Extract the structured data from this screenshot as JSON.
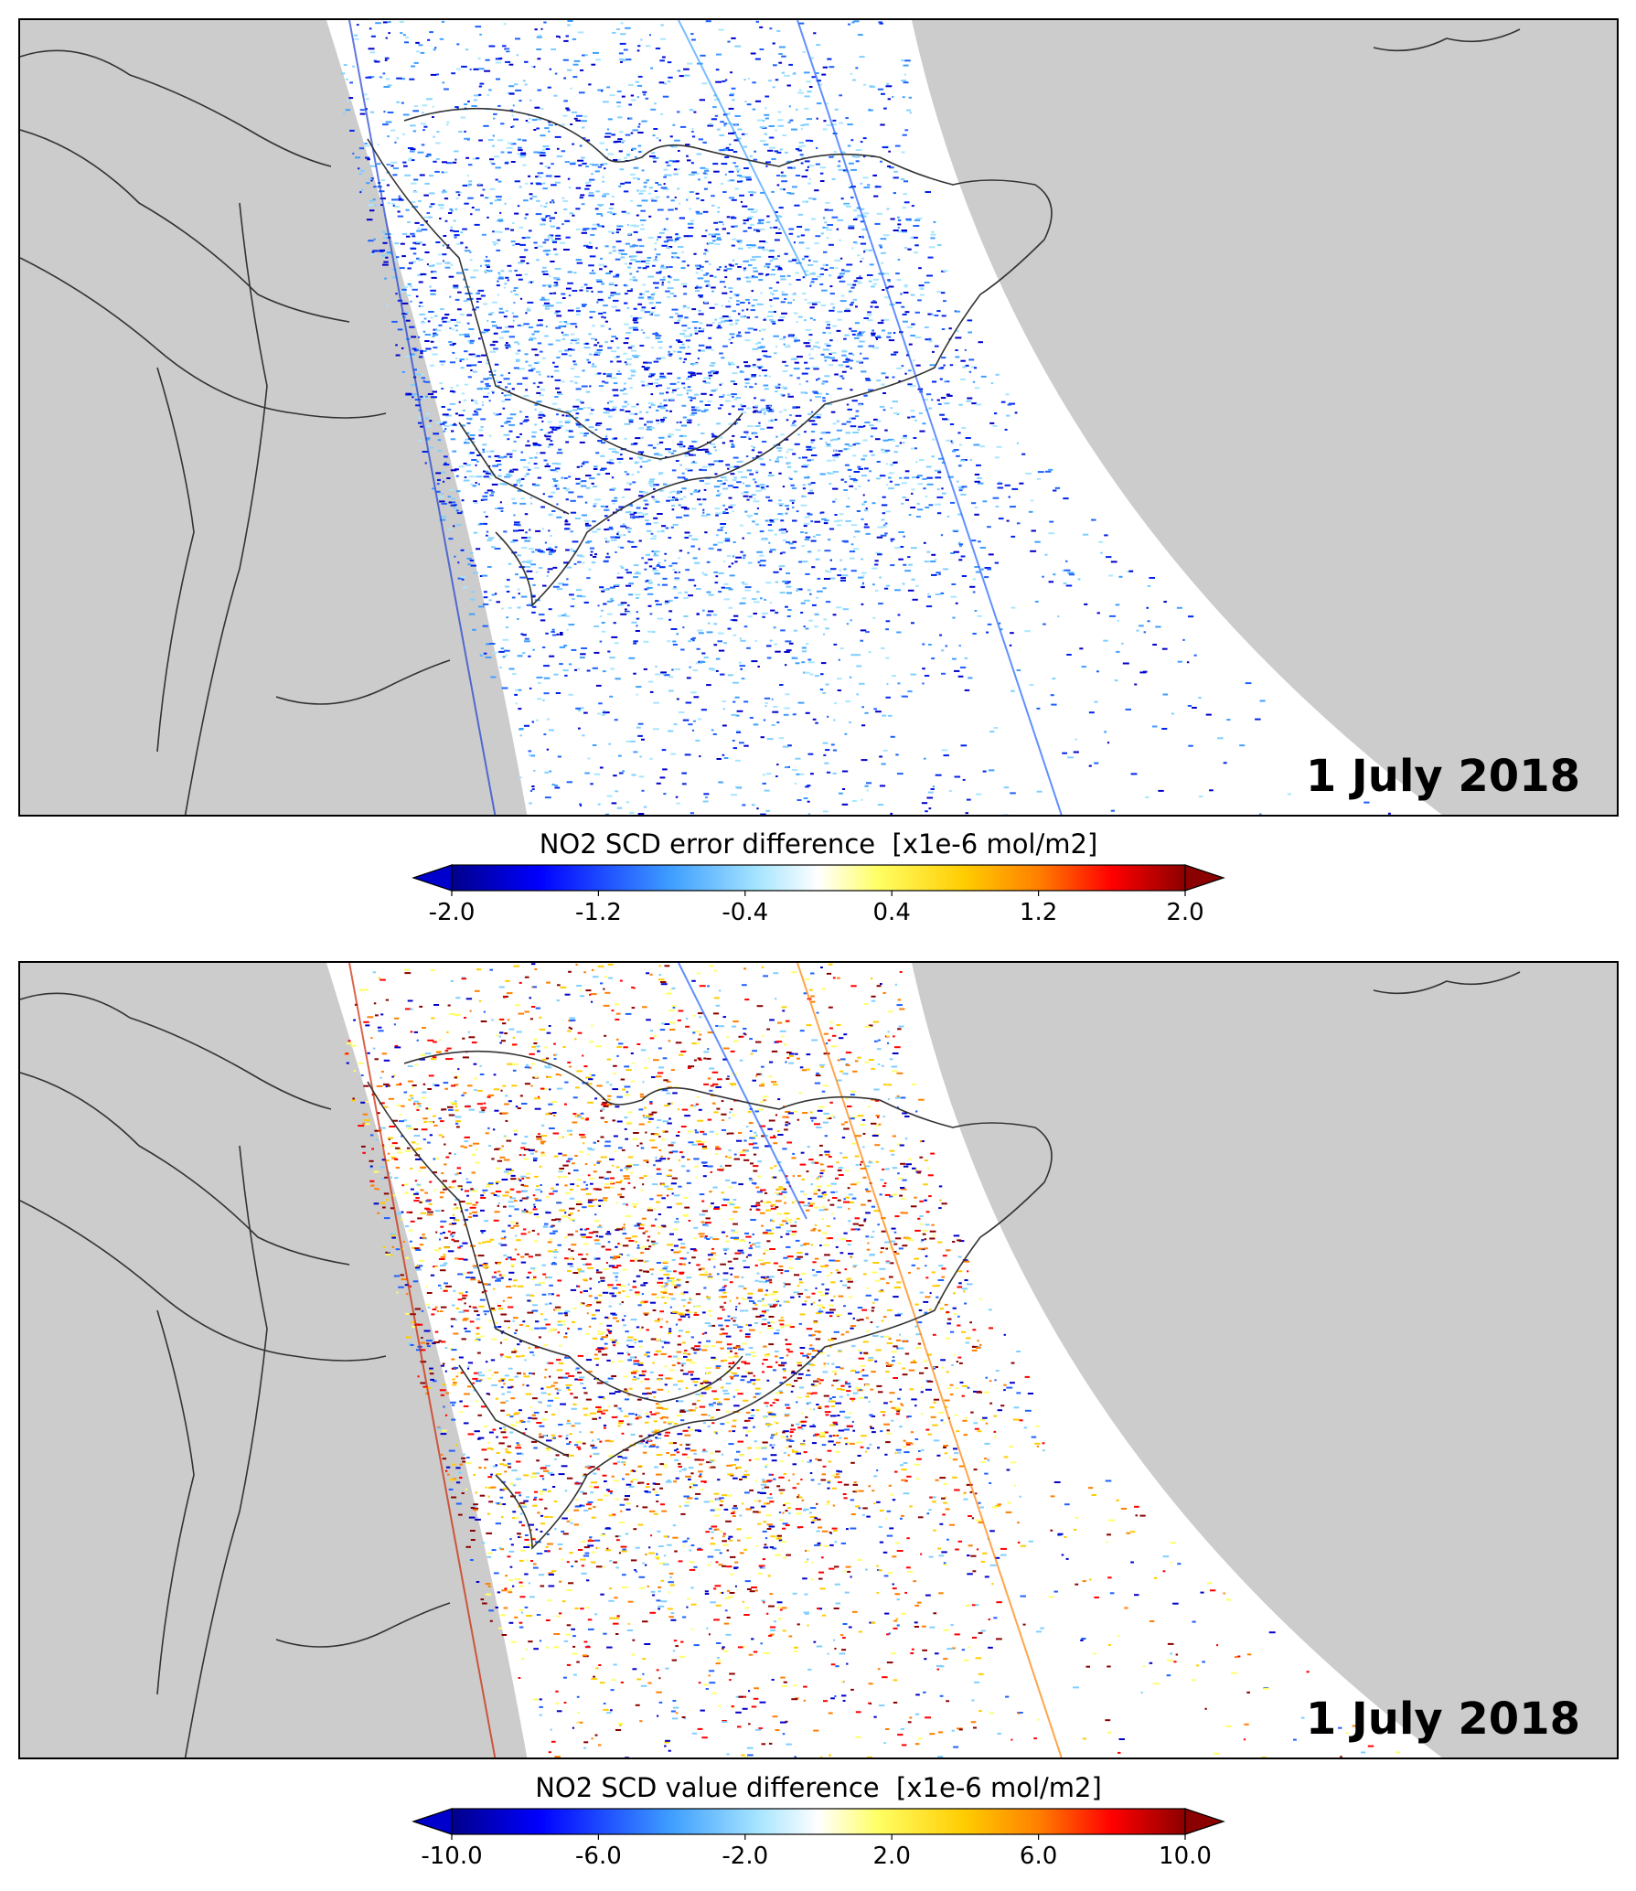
{
  "panels": [
    {
      "date": "1 July 2018",
      "colorbar": {
        "title": "NO2 SCD error difference  [x1e-6 mol/m2]",
        "ticks": [
          "-2.0",
          "-1.2",
          "-0.4",
          "0.4",
          "1.2",
          "2.0"
        ],
        "range": [
          -2.0,
          2.0
        ]
      },
      "dominant_scheme": "blue"
    },
    {
      "date": "1 July 2018",
      "colorbar": {
        "title": "NO2 SCD value difference  [x1e-6 mol/m2]",
        "ticks": [
          "-10.0",
          "-6.0",
          "-2.0",
          "2.0",
          "6.0",
          "10.0"
        ],
        "range": [
          -10.0,
          10.0
        ]
      },
      "dominant_scheme": "mixed"
    }
  ],
  "colors": {
    "land_outside_swath": "#cccccc",
    "swath_background": "#ffffff",
    "coastline": "#333333",
    "colormap": [
      "#00008b",
      "#0000ff",
      "#3f9fff",
      "#a8e6ff",
      "#ffffff",
      "#ffff66",
      "#ffcc00",
      "#ff7f00",
      "#ff0000",
      "#8b0000"
    ]
  }
}
